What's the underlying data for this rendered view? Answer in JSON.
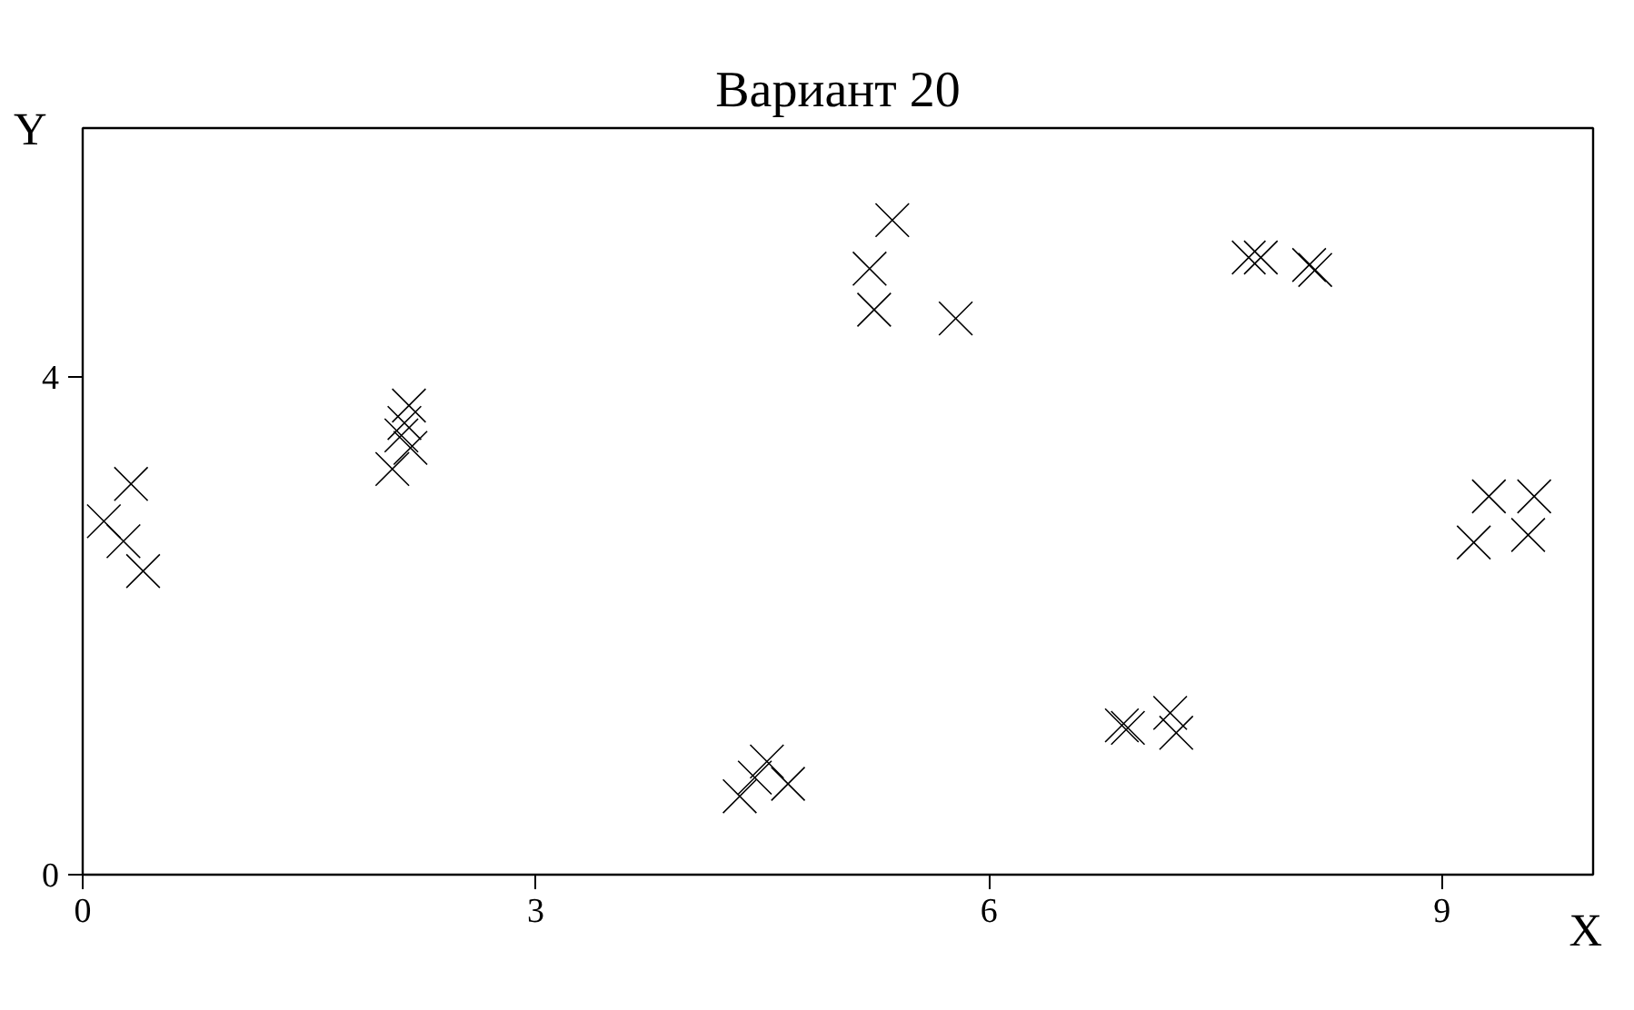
{
  "chart_data": {
    "type": "scatter",
    "title": "Вариант 20",
    "xlabel": "X",
    "ylabel": "Y",
    "x": [
      0.32,
      0.14,
      0.27,
      0.4,
      2.16,
      2.13,
      2.11,
      2.17,
      2.05,
      5.36,
      5.21,
      5.24,
      5.78,
      4.53,
      4.45,
      4.35,
      4.67,
      7.72,
      7.8,
      8.12,
      8.16,
      6.88,
      6.92,
      7.2,
      7.24,
      9.31,
      9.61,
      9.21,
      9.57
    ],
    "series": [
      {
        "color": "#000000",
        "values": [
          3.14,
          2.84,
          2.68,
          2.44,
          3.77,
          3.63,
          3.53,
          3.43,
          3.26,
          5.26,
          4.87,
          4.54,
          4.47,
          0.91,
          0.78,
          0.63,
          0.73,
          4.96,
          4.96,
          4.9,
          4.86,
          1.2,
          1.18,
          1.3,
          1.14,
          3.04,
          3.04,
          2.67,
          2.73
        ]
      }
    ],
    "xlim": [
      0,
      10
    ],
    "ylim": [
      0,
      6
    ],
    "xticks": [
      0,
      3,
      6,
      9
    ],
    "yticks": [
      0,
      4
    ],
    "grid": false,
    "marker": "cross"
  }
}
